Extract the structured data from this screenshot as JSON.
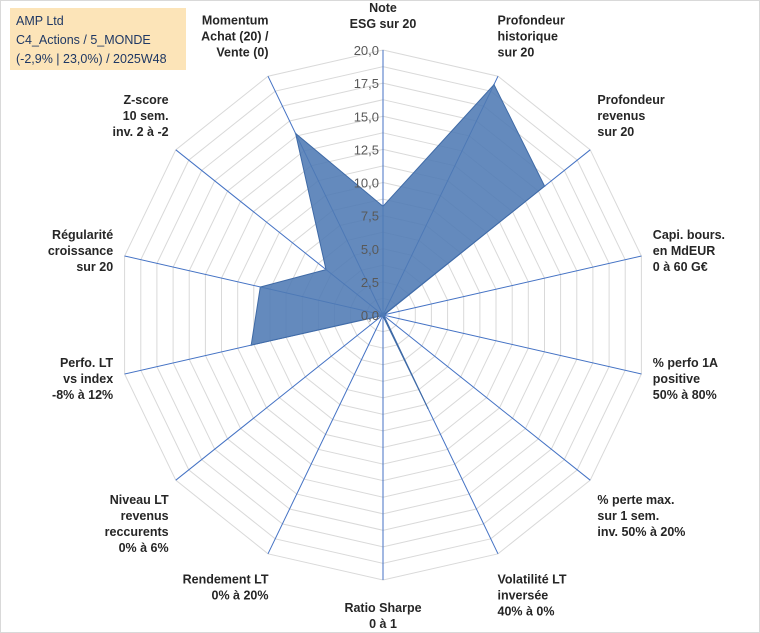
{
  "info_box": {
    "company": "AMP Ltd",
    "portfolio": "C4_Actions / 5_MONDE",
    "performance": "(-2,9% | 23,0%) / 2025W48"
  },
  "chart_data": {
    "type": "radar",
    "title": "",
    "rlim": [
      0,
      20
    ],
    "tick_values": [
      0,
      2.5,
      5,
      7.5,
      10,
      12.5,
      15,
      17.5,
      20
    ],
    "tick_labels": [
      "0,0",
      "2,5",
      "5,0",
      "7,5",
      "10,0",
      "12,5",
      "15,0",
      "17,5",
      "20,0"
    ],
    "axes": [
      {
        "label": [
          "Note",
          "ESG sur 20"
        ],
        "value": 8.2
      },
      {
        "label": [
          "Profondeur",
          "historique",
          "sur 20"
        ],
        "value": 19.3
      },
      {
        "label": [
          "Profondeur",
          "revenus",
          "sur 20"
        ],
        "value": 15.6
      },
      {
        "label": [
          "Capi. bours.",
          "en MdEUR",
          "0 à 60 G€"
        ],
        "value": 0.1
      },
      {
        "label": [
          "% perfo 1A",
          "positive",
          "50% à 80%"
        ],
        "value": 0.1
      },
      {
        "label": [
          "% perte max.",
          "sur 1 sem.",
          "inv. 50% à 20%"
        ],
        "value": 0.1
      },
      {
        "label": [
          "Volatilité LT",
          "inversée",
          "40% à 0%"
        ],
        "value": 7.8
      },
      {
        "label": [
          "Ratio Sharpe",
          "0 à 1"
        ],
        "value": 0.1
      },
      {
        "label": [
          "Rendement LT",
          "0% à 20%"
        ],
        "value": 0.1
      },
      {
        "label": [
          "Niveau LT",
          "revenus",
          "reccurents",
          "0% à 6%"
        ],
        "value": 0.1
      },
      {
        "label": [
          "Perfo. LT",
          "vs index",
          "-8% à 12%"
        ],
        "value": 10.2
      },
      {
        "label": [
          "Régularité",
          "croissance",
          "sur 20"
        ],
        "value": 9.5
      },
      {
        "label": [
          "Z-score",
          "10 sem.",
          "inv. 2 à -2"
        ],
        "value": 5.5
      },
      {
        "label": [
          "Momentum",
          "Achat (20) /",
          "Vente (0)"
        ],
        "value": 15.2
      }
    ],
    "series": [
      {
        "name": "AMP Ltd",
        "color": "#4f7ab4"
      }
    ],
    "colors": {
      "grid": "#d9d9d9",
      "spoke": "#4472c4",
      "fill": "#4f7ab4"
    }
  }
}
